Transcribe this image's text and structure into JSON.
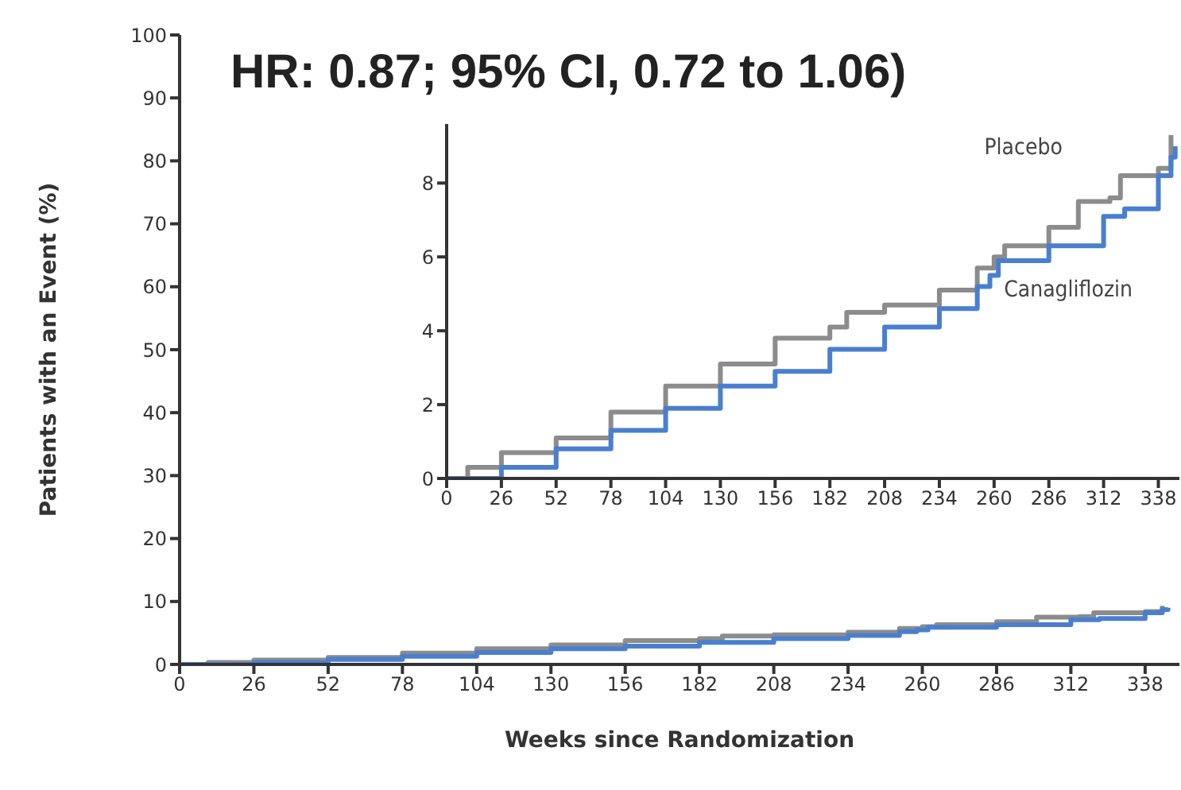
{
  "chart_data": [
    {
      "type": "step",
      "xlabel": "Weeks since Randomization",
      "ylabel": "Patients with an Event (%)",
      "xlim": [
        0,
        350
      ],
      "xticks": [
        0,
        26,
        52,
        78,
        104,
        130,
        156,
        182,
        208,
        234,
        260,
        286,
        312,
        338
      ],
      "ylim": [
        0,
        100
      ],
      "yticks": [
        0,
        10,
        20,
        30,
        40,
        50,
        60,
        70,
        80,
        90,
        100
      ],
      "annotations": [
        "HR: 0.87; 95% CI, 0.72 to 1.06)"
      ],
      "legend": false,
      "series": [
        {
          "color": "#8c8c8c",
          "x": [
            0,
            10,
            26,
            52,
            78,
            104,
            130,
            156,
            182,
            190,
            208,
            234,
            252,
            260,
            265,
            286,
            300,
            315,
            320,
            338,
            344
          ],
          "values": [
            0,
            0.3,
            0.7,
            1.1,
            1.8,
            2.5,
            3.1,
            3.8,
            4.1,
            4.5,
            4.7,
            5.1,
            5.7,
            6,
            6.3,
            6.8,
            7.5,
            7.6,
            8.2,
            8.4,
            9.3
          ]
        },
        {
          "color": "#4a7fcf",
          "x": [
            0,
            26,
            52,
            78,
            104,
            130,
            156,
            182,
            208,
            234,
            252,
            258,
            262,
            286,
            312,
            322,
            338,
            344,
            346
          ],
          "values": [
            0,
            0.3,
            0.8,
            1.3,
            1.9,
            2.5,
            2.9,
            3.5,
            4.1,
            4.6,
            5.2,
            5.5,
            5.9,
            6.3,
            7.1,
            7.3,
            8.2,
            8.7,
            9
          ]
        }
      ]
    },
    {
      "type": "step",
      "xlim": [
        0,
        348
      ],
      "xticks": [
        0,
        26,
        52,
        78,
        104,
        130,
        156,
        182,
        208,
        234,
        260,
        286,
        312,
        338
      ],
      "ylim": [
        0,
        9.6
      ],
      "yticks": [
        0,
        2,
        4,
        6,
        8
      ],
      "legend": false,
      "series": [
        {
          "name": "Placebo",
          "color": "#8c8c8c",
          "x": [
            0,
            10,
            26,
            52,
            78,
            104,
            130,
            156,
            182,
            190,
            208,
            234,
            252,
            260,
            265,
            286,
            300,
            315,
            320,
            338,
            344
          ],
          "values": [
            0,
            0.3,
            0.7,
            1.1,
            1.8,
            2.5,
            3.1,
            3.8,
            4.1,
            4.5,
            4.7,
            5.1,
            5.7,
            6,
            6.3,
            6.8,
            7.5,
            7.6,
            8.2,
            8.4,
            9.3
          ]
        },
        {
          "name": "Canagliflozin",
          "color": "#4a7fcf",
          "x": [
            0,
            26,
            52,
            78,
            104,
            130,
            156,
            182,
            208,
            234,
            252,
            258,
            262,
            286,
            312,
            322,
            338,
            344,
            346
          ],
          "values": [
            0,
            0.3,
            0.8,
            1.3,
            1.9,
            2.5,
            2.9,
            3.5,
            4.1,
            4.6,
            5.2,
            5.5,
            5.9,
            6.3,
            7.1,
            7.3,
            8.2,
            8.7,
            9
          ]
        }
      ]
    }
  ]
}
